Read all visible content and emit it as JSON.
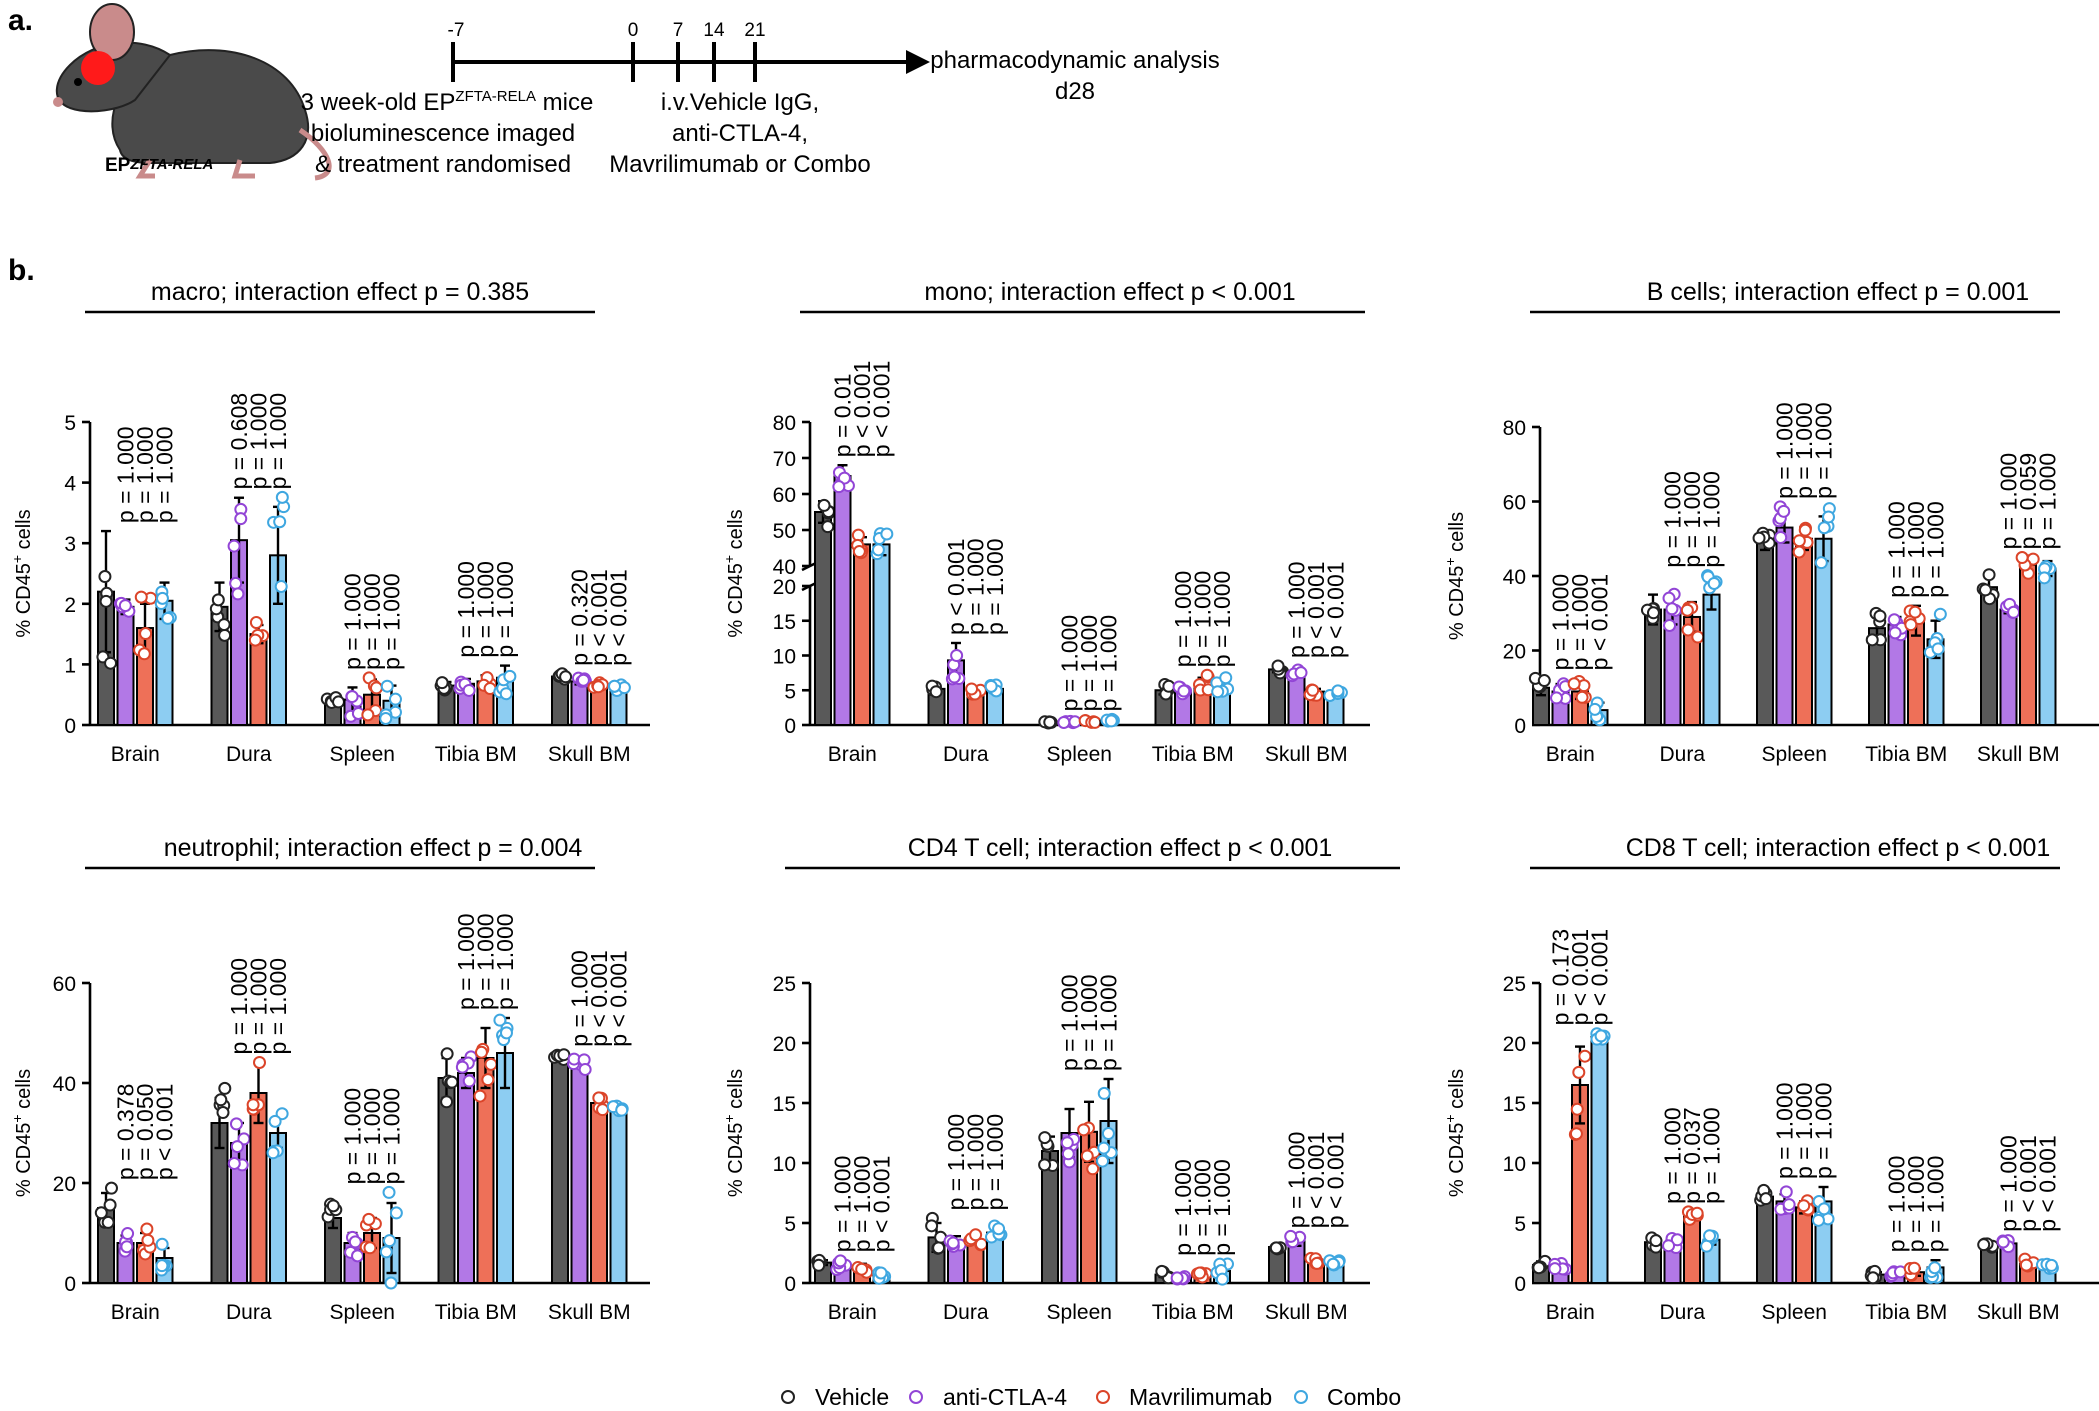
{
  "panel_a": {
    "label": "a.",
    "mouse_label": "EP",
    "mouse_label_sup": "ZFTA-RELA",
    "timeline_ticks": [
      "-7",
      "0",
      "7",
      "14",
      "21"
    ],
    "left_text_1_pre": "3 week-old EP",
    "left_text_1_sup": "ZFTA-RELA",
    "left_text_1_post": " mice",
    "left_text_2": "bioluminescence imaged",
    "left_text_3": "& treatment randomised",
    "mid_text_1": "i.v.Vehicle IgG,",
    "mid_text_2": "anti-CTLA-4,",
    "mid_text_3": "Mavrilimumab or Combo",
    "end_text_1": "pharmacodynamic analysis",
    "end_text_2": "d28"
  },
  "panel_b": {
    "label": "b."
  },
  "colors": {
    "vehicle": "#595959",
    "anti_ctla4": "#b278e6",
    "mavrilimumab": "#ee7058",
    "combo": "#8dcdf2",
    "vehicle_dot": "#222222",
    "anti_ctla4_dot": "#9245d6",
    "mavrilimumab_dot": "#db4429",
    "combo_dot": "#3fa7e0",
    "mouse_body": "#4a4a4a",
    "mouse_tumor": "#ff1a1a"
  },
  "legend": {
    "series_labels": [
      "Vehicle",
      "anti-CTLA-4",
      "Mavrilimumab",
      "Combo"
    ]
  },
  "chart_data": [
    {
      "type": "bar",
      "title": "macro; interaction effect p = 0.385",
      "ylabel": "% CD45",
      "ylabel_sup": "+",
      "ylabel_post": " cells",
      "ylim": [
        0,
        5
      ],
      "yticks": [
        "0",
        "1",
        "2",
        "3",
        "4",
        "5"
      ],
      "ytick_values": [
        0,
        1,
        2,
        3,
        4,
        5
      ],
      "categories": [
        "Brain",
        "Dura",
        "Spleen",
        "Tibia BM",
        "Skull BM"
      ],
      "series": [
        {
          "name": "Vehicle",
          "values": [
            2.2,
            1.95,
            0.42,
            0.65,
            0.8
          ],
          "errors": [
            1.0,
            0.4,
            0.06,
            0.06,
            0.04
          ]
        },
        {
          "name": "anti-CTLA-4",
          "values": [
            1.95,
            3.05,
            0.42,
            0.68,
            0.72
          ],
          "errors": [
            0.12,
            0.7,
            0.2,
            0.08,
            0.05
          ]
        },
        {
          "name": "Mavrilimumab",
          "values": [
            1.6,
            1.5,
            0.5,
            0.72,
            0.63
          ],
          "errors": [
            0.4,
            0.15,
            0.25,
            0.1,
            0.05
          ]
        },
        {
          "name": "Combo",
          "values": [
            2.05,
            2.8,
            0.4,
            0.78,
            0.62
          ],
          "errors": [
            0.3,
            0.8,
            0.25,
            0.2,
            0.04
          ]
        }
      ],
      "pvalues": [
        [
          "p = 1.000",
          "p = 1.000",
          "p = 1.000"
        ],
        [
          "p = 0.608",
          "p = 1.000",
          "p = 1.000"
        ],
        [
          "p = 1.000",
          "p = 1.000",
          "p = 1.000"
        ],
        [
          "p = 1.000",
          "p = 1.000",
          "p = 1.000"
        ],
        [
          "p = 0.320",
          "p < 0.001",
          "p < 0.001"
        ]
      ]
    },
    {
      "type": "bar",
      "title": "mono; interaction effect p < 0.001",
      "ylabel": "% CD45",
      "ylabel_sup": "+",
      "ylabel_post": " cells",
      "ylim": [
        0,
        80
      ],
      "axis_break": [
        20,
        40
      ],
      "yticks": [
        "0",
        "5",
        "10",
        "15",
        "20",
        "40",
        "50",
        "60",
        "70",
        "80"
      ],
      "ytick_values": [
        0,
        5,
        10,
        15,
        20,
        40,
        50,
        60,
        70,
        80
      ],
      "categories": [
        "Brain",
        "Dura",
        "Spleen",
        "Tibia BM",
        "Skull BM"
      ],
      "series": [
        {
          "name": "Vehicle",
          "values": [
            55,
            5.2,
            0.4,
            5.0,
            8.0
          ],
          "errors": [
            3,
            0.3,
            0.1,
            0.6,
            0.4
          ]
        },
        {
          "name": "anti-CTLA-4",
          "values": [
            65,
            9.3,
            0.4,
            4.8,
            7.6
          ],
          "errors": [
            3,
            2.5,
            0.1,
            0.6,
            0.4
          ]
        },
        {
          "name": "Mavrilimumab",
          "values": [
            46,
            4.8,
            0.5,
            5.8,
            4.8
          ],
          "errors": [
            2,
            0.3,
            0.1,
            1.0,
            0.4
          ]
        },
        {
          "name": "Combo",
          "values": [
            46,
            5.2,
            0.6,
            5.6,
            4.5
          ],
          "errors": [
            3,
            0.5,
            0.2,
            1.0,
            0.4
          ]
        }
      ],
      "pvalues": [
        [
          "p = 0.01",
          "p < 0.001",
          "p < 0.001"
        ],
        [
          "p < 0.001",
          "p = 1.000",
          "p = 1.000"
        ],
        [
          "p = 1.000",
          "p = 1.000",
          "p = 1.000"
        ],
        [
          "p = 1.000",
          "p = 1.000",
          "p = 1.000"
        ],
        [
          "p = 1.000",
          "p < 0.001",
          "p < 0.001"
        ]
      ]
    },
    {
      "type": "bar",
      "title": "B cells; interaction effect p = 0.001",
      "ylabel": "% CD45",
      "ylabel_sup": "+",
      "ylabel_post": " cells",
      "ylim": [
        0,
        80
      ],
      "yticks": [
        "0",
        "20",
        "40",
        "60",
        "80"
      ],
      "ytick_values": [
        0,
        20,
        40,
        60,
        80
      ],
      "categories": [
        "Brain",
        "Dura",
        "Spleen",
        "Tibia BM",
        "Skull BM"
      ],
      "series": [
        {
          "name": "Vehicle",
          "values": [
            10,
            31,
            49,
            26,
            37
          ],
          "errors": [
            2,
            4,
            2,
            3,
            3
          ]
        },
        {
          "name": "anti-CTLA-4",
          "values": [
            9,
            31,
            53,
            27,
            31
          ],
          "errors": [
            2,
            4,
            4,
            2,
            1
          ]
        },
        {
          "name": "Mavrilimumab",
          "values": [
            9,
            29,
            50,
            28,
            43
          ],
          "errors": [
            2,
            4,
            3,
            4,
            2
          ]
        },
        {
          "name": "Combo",
          "values": [
            4,
            35,
            50,
            23,
            42
          ],
          "errors": [
            2,
            4,
            6,
            5,
            2
          ]
        }
      ],
      "pvalues": [
        [
          "p = 1.000",
          "p = 1.000",
          "p < 0.001"
        ],
        [
          "p = 1.000",
          "p = 1.000",
          "p = 1.000"
        ],
        [
          "p = 1.000",
          "p = 1.000",
          "p = 1.000"
        ],
        [
          "p = 1.000",
          "p = 1.000",
          "p = 1.000"
        ],
        [
          "p = 1.000",
          "p = 0.059",
          "p = 1.000"
        ]
      ]
    },
    {
      "type": "bar",
      "title": "neutrophil; interaction effect p = 0.004",
      "ylabel": "% CD45",
      "ylabel_sup": "+",
      "ylabel_post": " cells",
      "ylim": [
        0,
        60
      ],
      "yticks": [
        "0",
        "20",
        "40",
        "60"
      ],
      "ytick_values": [
        0,
        20,
        40,
        60
      ],
      "categories": [
        "Brain",
        "Dura",
        "Spleen",
        "Tibia BM",
        "Skull BM"
      ],
      "series": [
        {
          "name": "Vehicle",
          "values": [
            15,
            32,
            13,
            41,
            45
          ],
          "errors": [
            3,
            5,
            2,
            4,
            0.6
          ]
        },
        {
          "name": "anti-CTLA-4",
          "values": [
            8,
            28,
            8,
            42,
            44
          ],
          "errors": [
            1.5,
            4,
            2,
            3,
            1
          ]
        },
        {
          "name": "Mavrilimumab",
          "values": [
            8,
            38,
            10,
            45,
            36
          ],
          "errors": [
            2,
            6,
            3,
            6,
            1
          ]
        },
        {
          "name": "Combo",
          "values": [
            5,
            30,
            9,
            46,
            35
          ],
          "errors": [
            2,
            3,
            7,
            7,
            0.6
          ]
        }
      ],
      "pvalues": [
        [
          "p = 0.378",
          "p = 0.050",
          "p < 0.001"
        ],
        [
          "p = 1.000",
          "p = 1.000",
          "p = 1.000"
        ],
        [
          "p = 1.000",
          "p = 1.000",
          "p = 1.000"
        ],
        [
          "p = 1.000",
          "p = 1.000",
          "p = 1.000"
        ],
        [
          "p = 1.000",
          "p < 0.001",
          "p < 0.001"
        ]
      ]
    },
    {
      "type": "bar",
      "title": "CD4 T cell; interaction effect p < 0.001",
      "ylabel": "% CD45",
      "ylabel_sup": "+",
      "ylabel_post": " cells",
      "ylim": [
        0,
        25
      ],
      "yticks": [
        "0",
        "5",
        "10",
        "15",
        "20",
        "25"
      ],
      "ytick_values": [
        0,
        5,
        10,
        15,
        20,
        25
      ],
      "categories": [
        "Brain",
        "Dura",
        "Spleen",
        "Tibia BM",
        "Skull BM"
      ],
      "series": [
        {
          "name": "Vehicle",
          "values": [
            1.7,
            3.8,
            11.0,
            0.7,
            3.0
          ],
          "errors": [
            0.2,
            1.2,
            1.2,
            0.2,
            0.2
          ]
        },
        {
          "name": "anti-CTLA-4",
          "values": [
            1.5,
            3.5,
            12.5,
            0.6,
            3.5
          ],
          "errors": [
            0.3,
            0.4,
            2.0,
            0.2,
            0.4
          ]
        },
        {
          "name": "Mavrilimumab",
          "values": [
            1.3,
            3.6,
            12.6,
            0.7,
            1.8
          ],
          "errors": [
            0.3,
            0.3,
            2.5,
            0.2,
            0.2
          ]
        },
        {
          "name": "Combo",
          "values": [
            0.6,
            4.2,
            13.5,
            1.0,
            1.6
          ],
          "errors": [
            0.2,
            0.4,
            3.5,
            0.6,
            0.2
          ]
        }
      ],
      "pvalues": [
        [
          "p = 1.000",
          "p = 1.000",
          "p < 0.001"
        ],
        [
          "p = 1.000",
          "p = 1.000",
          "p = 1.000"
        ],
        [
          "p = 1.000",
          "p = 1.000",
          "p = 1.000"
        ],
        [
          "p = 1.000",
          "p = 1.000",
          "p = 1.000"
        ],
        [
          "p = 1.000",
          "p < 0.001",
          "p < 0.001"
        ]
      ]
    },
    {
      "type": "bar",
      "title": "CD8 T cell; interaction effect p < 0.001",
      "ylabel": "% CD45",
      "ylabel_sup": "+",
      "ylabel_post": " cells",
      "ylim": [
        0,
        25
      ],
      "yticks": [
        "0",
        "5",
        "10",
        "15",
        "20",
        "25"
      ],
      "ytick_values": [
        0,
        5,
        10,
        15,
        20,
        25
      ],
      "categories": [
        "Brain",
        "Dura",
        "Spleen",
        "Tibia BM",
        "Skull BM"
      ],
      "series": [
        {
          "name": "Vehicle",
          "values": [
            1.5,
            3.4,
            7.2,
            0.7,
            3.0
          ],
          "errors": [
            0.3,
            0.3,
            0.5,
            0.2,
            0.2
          ]
        },
        {
          "name": "anti-CTLA-4",
          "values": [
            1.2,
            3.3,
            6.8,
            0.8,
            3.3
          ],
          "errors": [
            0.3,
            0.3,
            0.6,
            0.2,
            0.3
          ]
        },
        {
          "name": "Mavrilimumab",
          "values": [
            16.5,
            5.6,
            6.3,
            0.9,
            1.6
          ],
          "errors": [
            3.2,
            0.3,
            0.5,
            0.3,
            0.3
          ]
        },
        {
          "name": "Combo",
          "values": [
            20.5,
            3.6,
            6.8,
            1.3,
            1.4
          ],
          "errors": [
            0.3,
            0.4,
            1.2,
            0.6,
            0.2
          ]
        }
      ],
      "pvalues": [
        [
          "p = 0.173",
          "p < 0.001",
          "p < 0.001"
        ],
        [
          "p = 1.000",
          "p = 0.037",
          "p = 1.000"
        ],
        [
          "p = 1.000",
          "p = 1.000",
          "p = 1.000"
        ],
        [
          "p = 1.000",
          "p = 1.000",
          "p = 1.000"
        ],
        [
          "p = 1.000",
          "p < 0.001",
          "p < 0.001"
        ]
      ]
    }
  ]
}
